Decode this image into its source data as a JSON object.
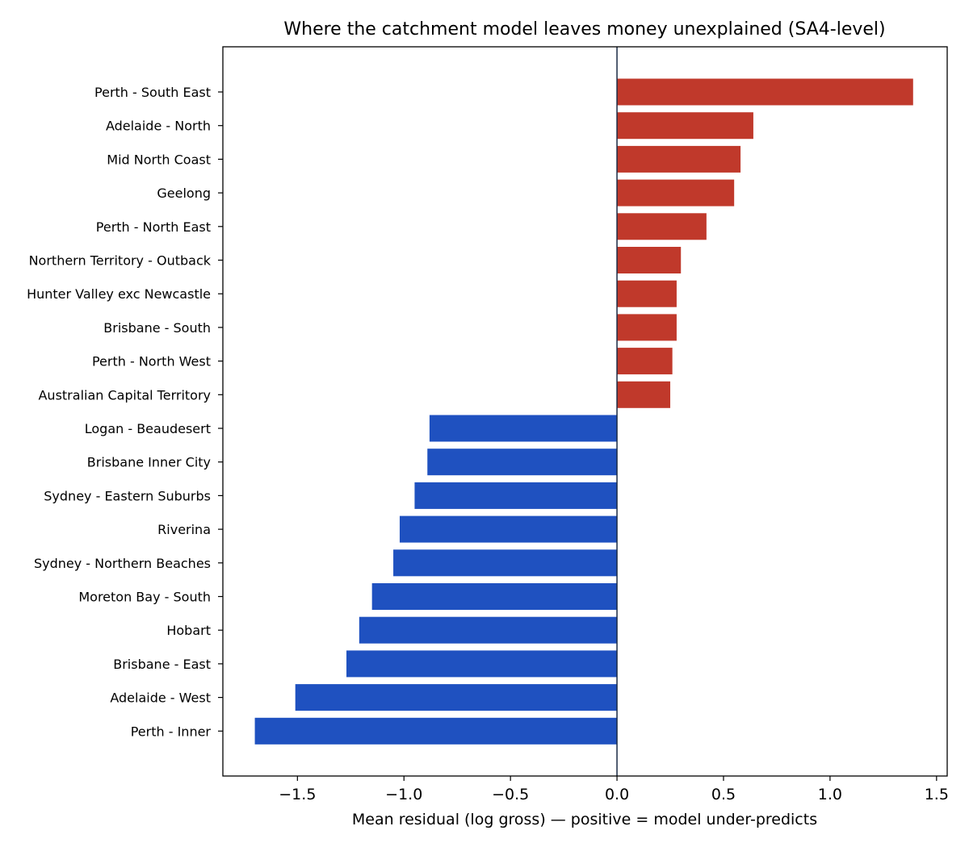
{
  "chart_data": {
    "type": "bar",
    "orientation": "horizontal",
    "title": "Where the catchment model leaves money unexplained (SA4-level)",
    "xlabel": "Mean residual (log gross)  —  positive = model under-predicts",
    "ylabel": "",
    "xlim": [
      -1.85,
      1.55
    ],
    "xticks": [
      -1.5,
      -1.0,
      -0.5,
      0.0,
      0.5,
      1.0,
      1.5
    ],
    "xtick_labels": [
      "−1.5",
      "−1.0",
      "−0.5",
      "0.0",
      "0.5",
      "1.0",
      "1.5"
    ],
    "grid": false,
    "legend": "none",
    "colors": {
      "positive": "#c0392b",
      "negative": "#1f51c0",
      "zero_line": "#1a2a44",
      "axis": "#000000"
    },
    "categories": [
      "Perth - South East",
      "Adelaide - North",
      "Mid North Coast",
      "Geelong",
      "Perth - North East",
      "Northern Territory - Outback",
      "Hunter Valley exc Newcastle",
      "Brisbane - South",
      "Perth - North West",
      "Australian Capital Territory",
      "Logan - Beaudesert",
      "Brisbane Inner City",
      "Sydney - Eastern Suburbs",
      "Riverina",
      "Sydney - Northern Beaches",
      "Moreton Bay - South",
      "Hobart",
      "Brisbane - East",
      "Adelaide - West",
      "Perth - Inner"
    ],
    "values": [
      1.39,
      0.64,
      0.58,
      0.55,
      0.42,
      0.3,
      0.28,
      0.28,
      0.26,
      0.25,
      -0.88,
      -0.89,
      -0.95,
      -1.02,
      -1.05,
      -1.15,
      -1.21,
      -1.27,
      -1.51,
      -1.7
    ]
  }
}
